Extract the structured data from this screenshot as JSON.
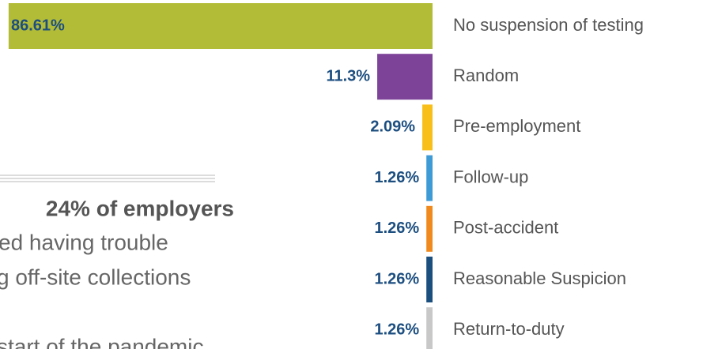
{
  "chart_data": {
    "type": "bar",
    "orientation": "horizontal",
    "categories": [
      "No suspension of testing",
      "Random",
      "Pre-employment",
      "Follow-up",
      "Post-accident",
      "Reasonable Suspicion",
      "Return-to-duty"
    ],
    "values": [
      86.61,
      11.3,
      2.09,
      1.26,
      1.26,
      1.26,
      1.26
    ],
    "value_labels": [
      "86.61%",
      "11.3%",
      "2.09%",
      "1.26%",
      "1.26%",
      "1.26%",
      "1.26%"
    ],
    "colors": [
      "#b3bc36",
      "#7d4399",
      "#f8bf1a",
      "#3f9bd5",
      "#f08a1e",
      "#1b4f7e",
      "#c8c8c8"
    ],
    "annotation": {
      "headline": "24% of employers",
      "lines": [
        "ed having trouble",
        "g off-site collections",
        "start of the pandemic"
      ]
    }
  }
}
